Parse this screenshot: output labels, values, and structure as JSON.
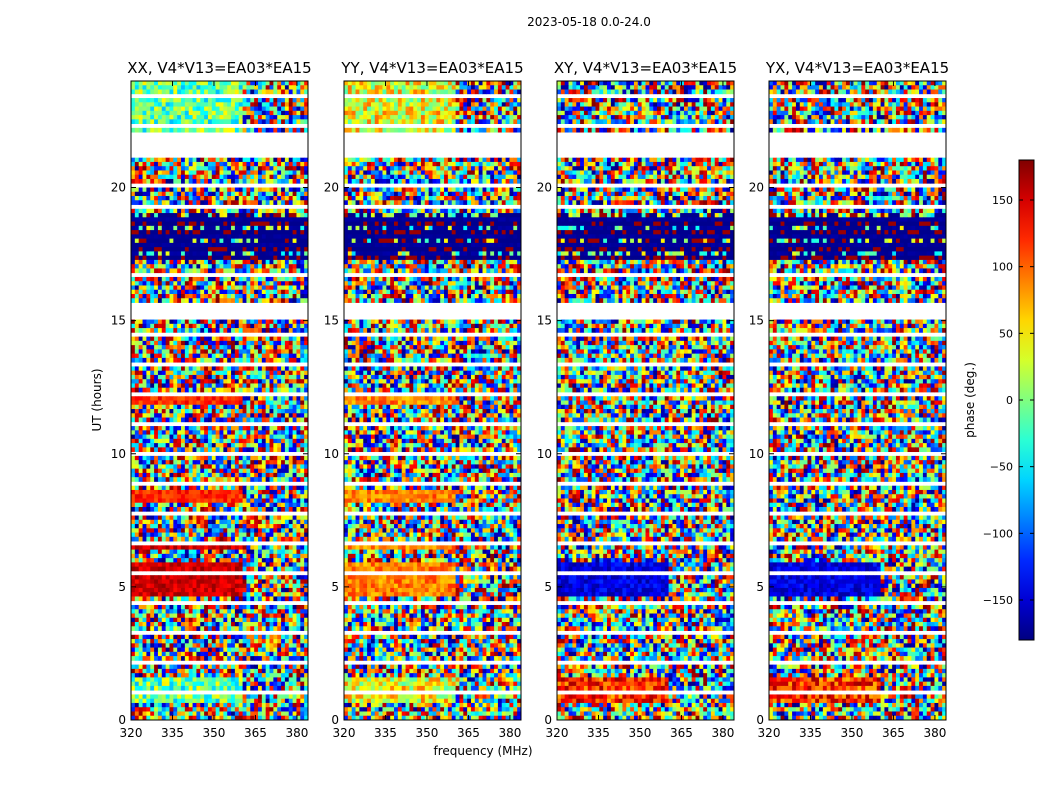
{
  "chart_data": {
    "type": "heatmap",
    "suptitle": "2023-05-18 0.0-24.0",
    "xlabel": "frequency (MHz)",
    "ylabel": "UT (hours)",
    "xlim": [
      320,
      384
    ],
    "ylim": [
      0,
      24
    ],
    "xticks": [
      320,
      335,
      350,
      365,
      380
    ],
    "yticks": [
      0,
      5,
      10,
      15,
      20
    ],
    "colorbar": {
      "label": "phase (deg.)",
      "range": [
        -180,
        180
      ],
      "ticks": [
        150,
        100,
        50,
        0,
        -50,
        -100,
        -150
      ],
      "colormap": "jet",
      "colors": [
        "#000080",
        "#0000ff",
        "#00ffff",
        "#ffff00",
        "#ff0000",
        "#800000"
      ]
    },
    "flagged_hours": [
      [
        21.1,
        22.0
      ],
      [
        15.0,
        15.7
      ],
      [
        19.2,
        19.4
      ]
    ],
    "panels": [
      {
        "title": "XX, V4*V13=EA03*EA15",
        "mode": "parallel",
        "banner_phase": -10
      },
      {
        "title": "YY, V4*V13=EA03*EA15",
        "mode": "parallel",
        "banner_phase": 40
      },
      {
        "title": "XY, V4*V13=EA03*EA15",
        "mode": "cross",
        "banner_phase": -160
      },
      {
        "title": "YX, V4*V13=EA03*EA15",
        "mode": "cross",
        "banner_phase": -150
      }
    ]
  }
}
